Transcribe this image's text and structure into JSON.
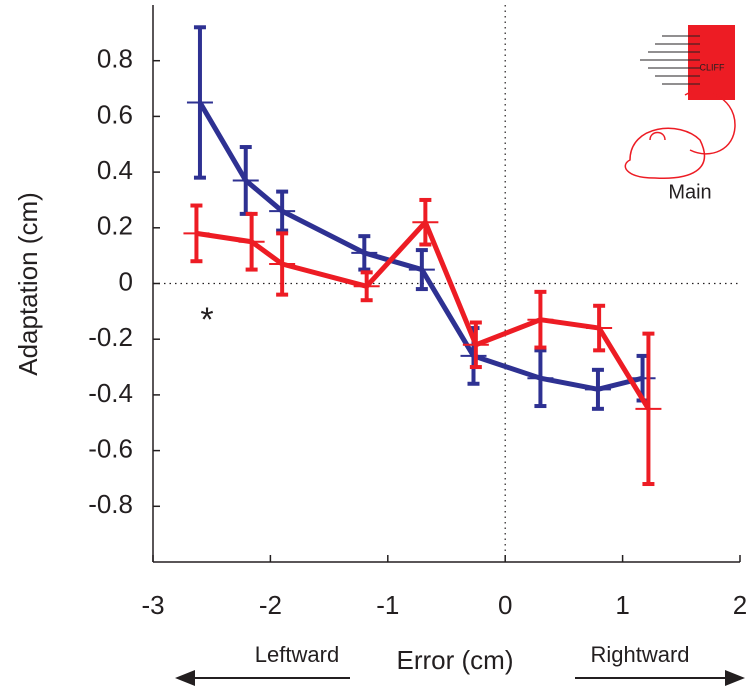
{
  "chart_data": {
    "type": "line",
    "xlabel": "Error (cm)",
    "ylabel": "Adaptation (cm)",
    "annotations": [
      "Leftward",
      "Rightward",
      "Main",
      "CLIFF",
      "*"
    ],
    "xlim": [
      -3,
      2
    ],
    "xticks": [
      -3,
      -2,
      -1,
      0,
      1,
      2
    ],
    "ylim": [
      -1,
      1
    ],
    "yticks": [
      -0.8,
      -0.6,
      -0.4,
      -0.2,
      0,
      0.2,
      0.4,
      0.6,
      0.8
    ],
    "series": [
      {
        "color": "#2e3192",
        "x": [
          -2.6,
          -2.21,
          -1.9,
          -1.2,
          -0.71,
          -0.27,
          0.3,
          0.79,
          1.17
        ],
        "values": [
          0.65,
          0.37,
          0.26,
          0.11,
          0.05,
          -0.26,
          -0.34,
          -0.38,
          -0.34
        ],
        "errors": [
          0.27,
          0.12,
          0.07,
          0.06,
          0.07,
          0.1,
          0.1,
          0.07,
          0.08
        ]
      },
      {
        "color": "#ed1c24",
        "x": [
          -2.63,
          -2.16,
          -1.9,
          -1.18,
          -0.68,
          -0.25,
          0.3,
          0.8,
          1.22
        ],
        "values": [
          0.18,
          0.15,
          0.07,
          -0.01,
          0.22,
          -0.22,
          -0.13,
          -0.16,
          -0.45
        ],
        "errors": [
          0.1,
          0.1,
          0.11,
          0.05,
          0.08,
          0.08,
          0.1,
          0.08,
          0.27
        ]
      }
    ]
  }
}
